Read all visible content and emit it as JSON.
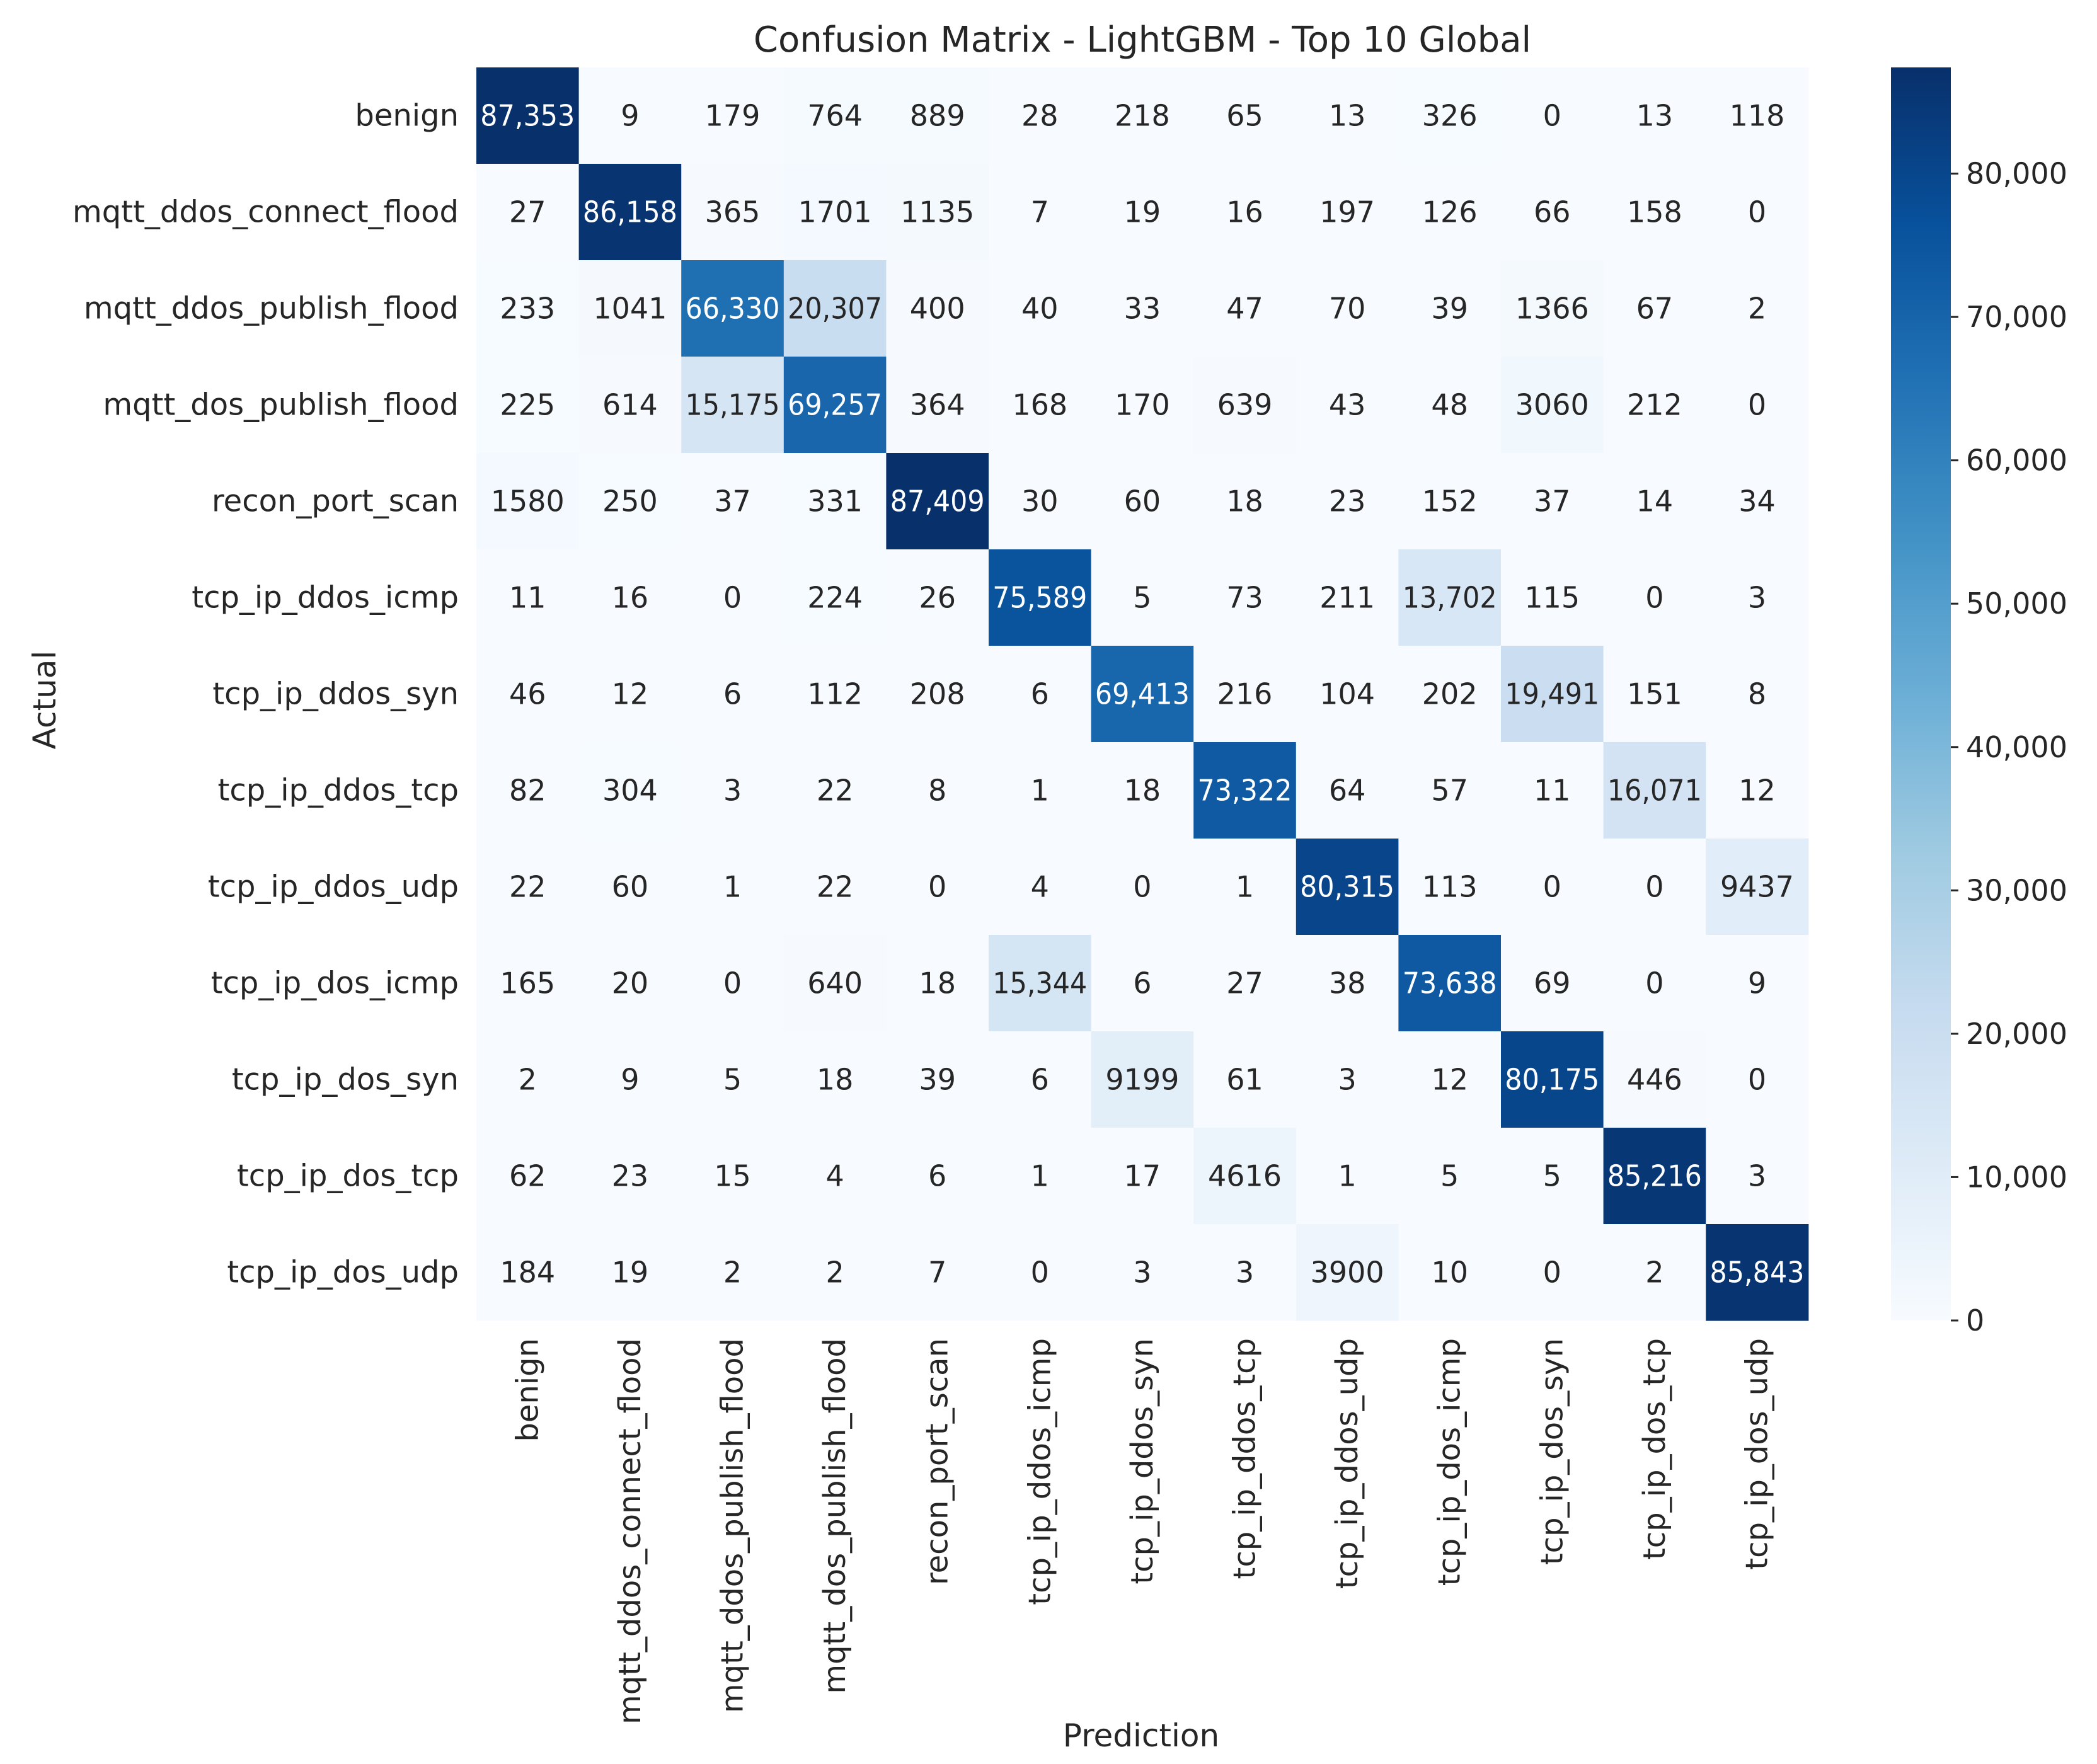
{
  "chart_data": {
    "type": "heatmap",
    "title": "Confusion Matrix - LightGBM - Top 10 Global",
    "xlabel": "Prediction",
    "ylabel": "Actual",
    "categories": [
      "benign",
      "mqtt_ddos_connect_flood",
      "mqtt_ddos_publish_flood",
      "mqtt_dos_publish_flood",
      "recon_port_scan",
      "tcp_ip_ddos_icmp",
      "tcp_ip_ddos_syn",
      "tcp_ip_ddos_tcp",
      "tcp_ip_ddos_udp",
      "tcp_ip_dos_icmp",
      "tcp_ip_dos_syn",
      "tcp_ip_dos_tcp",
      "tcp_ip_dos_udp"
    ],
    "matrix": [
      [
        87353,
        9,
        179,
        764,
        889,
        28,
        218,
        65,
        13,
        326,
        0,
        13,
        118
      ],
      [
        27,
        86158,
        365,
        1701,
        1135,
        7,
        19,
        16,
        197,
        126,
        66,
        158,
        0
      ],
      [
        233,
        1041,
        66330,
        20307,
        400,
        40,
        33,
        47,
        70,
        39,
        1366,
        67,
        2
      ],
      [
        225,
        614,
        15175,
        69257,
        364,
        168,
        170,
        639,
        43,
        48,
        3060,
        212,
        0
      ],
      [
        1580,
        250,
        37,
        331,
        87409,
        30,
        60,
        18,
        23,
        152,
        37,
        14,
        34
      ],
      [
        11,
        16,
        0,
        224,
        26,
        75589,
        5,
        73,
        211,
        13702,
        115,
        0,
        3
      ],
      [
        46,
        12,
        6,
        112,
        208,
        6,
        69413,
        216,
        104,
        202,
        19491,
        151,
        8
      ],
      [
        82,
        304,
        3,
        22,
        8,
        1,
        18,
        73322,
        64,
        57,
        11,
        16071,
        12
      ],
      [
        22,
        60,
        1,
        22,
        0,
        4,
        0,
        1,
        80315,
        113,
        0,
        0,
        9437
      ],
      [
        165,
        20,
        0,
        640,
        18,
        15344,
        6,
        27,
        38,
        73638,
        69,
        0,
        9
      ],
      [
        2,
        9,
        5,
        18,
        39,
        6,
        9199,
        61,
        3,
        12,
        80175,
        446,
        0
      ],
      [
        62,
        23,
        15,
        4,
        6,
        1,
        17,
        4616,
        1,
        5,
        5,
        85216,
        3
      ],
      [
        184,
        19,
        2,
        2,
        7,
        0,
        3,
        3,
        3900,
        10,
        0,
        2,
        85843
      ]
    ],
    "cell_labels": [
      [
        "87,353",
        "9",
        "179",
        "764",
        "889",
        "28",
        "218",
        "65",
        "13",
        "326",
        "0",
        "13",
        "118"
      ],
      [
        "27",
        "86,158",
        "365",
        "1701",
        "1135",
        "7",
        "19",
        "16",
        "197",
        "126",
        "66",
        "158",
        "0"
      ],
      [
        "233",
        "1041",
        "66,330",
        "20,307",
        "400",
        "40",
        "33",
        "47",
        "70",
        "39",
        "1366",
        "67",
        "2"
      ],
      [
        "225",
        "614",
        "15,175",
        "69,257",
        "364",
        "168",
        "170",
        "639",
        "43",
        "48",
        "3060",
        "212",
        "0"
      ],
      [
        "1580",
        "250",
        "37",
        "331",
        "87,409",
        "30",
        "60",
        "18",
        "23",
        "152",
        "37",
        "14",
        "34"
      ],
      [
        "11",
        "16",
        "0",
        "224",
        "26",
        "75,589",
        "5",
        "73",
        "211",
        "13,702",
        "115",
        "0",
        "3"
      ],
      [
        "46",
        "12",
        "6",
        "112",
        "208",
        "6",
        "69,413",
        "216",
        "104",
        "202",
        "19,491",
        "151",
        "8"
      ],
      [
        "82",
        "304",
        "3",
        "22",
        "8",
        "1",
        "18",
        "73,322",
        "64",
        "57",
        "11",
        "16,071",
        "12"
      ],
      [
        "22",
        "60",
        "1",
        "22",
        "0",
        "4",
        "0",
        "1",
        "80,315",
        "113",
        "0",
        "0",
        "9437"
      ],
      [
        "165",
        "20",
        "0",
        "640",
        "18",
        "15,344",
        "6",
        "27",
        "38",
        "73,638",
        "69",
        "0",
        "9"
      ],
      [
        "2",
        "9",
        "5",
        "18",
        "39",
        "6",
        "9199",
        "61",
        "3",
        "12",
        "80,175",
        "446",
        "0"
      ],
      [
        "62",
        "23",
        "15",
        "4",
        "6",
        "1",
        "17",
        "4616",
        "1",
        "5",
        "5",
        "85,216",
        "3"
      ],
      [
        "184",
        "19",
        "2",
        "2",
        "7",
        "0",
        "3",
        "3",
        "3900",
        "10",
        "0",
        "2",
        "85,843"
      ]
    ],
    "colorbar": {
      "colormap": "Blues",
      "vmin": 0,
      "vmax": 87409,
      "ticks": [
        0,
        10000,
        20000,
        30000,
        40000,
        50000,
        60000,
        70000,
        80000
      ],
      "tick_labels": [
        "0",
        "10,000",
        "20,000",
        "30,000",
        "40,000",
        "50,000",
        "60,000",
        "70,000",
        "80,000"
      ]
    },
    "grid": false,
    "legend": "colorbar right"
  }
}
